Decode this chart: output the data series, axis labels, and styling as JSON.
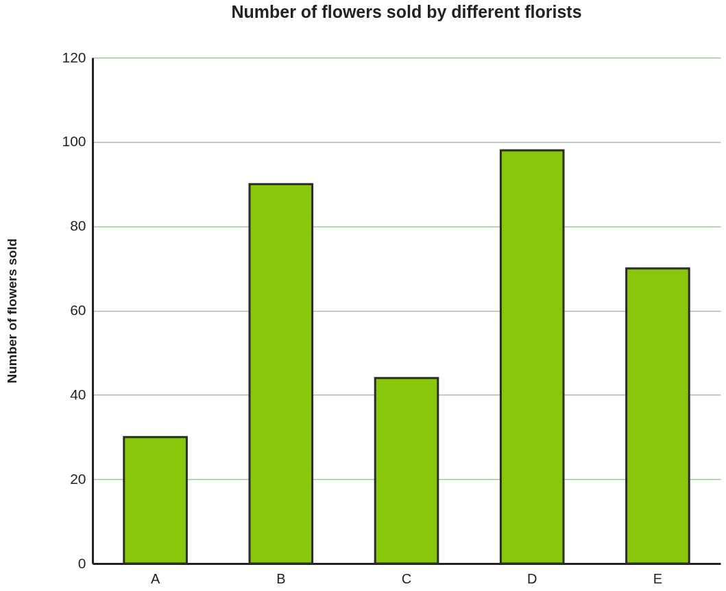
{
  "chart_data": {
    "type": "bar",
    "title": "Number of flowers sold by different florists",
    "ylabel": "Number of flowers sold",
    "categories": [
      "A",
      "B",
      "C",
      "D",
      "E"
    ],
    "values": [
      30,
      90,
      44,
      98,
      70
    ],
    "color": "#88c70a",
    "ylim": [
      0,
      120
    ],
    "yticks": [
      0,
      20,
      40,
      60,
      80,
      100,
      120
    ],
    "grid": "y"
  }
}
